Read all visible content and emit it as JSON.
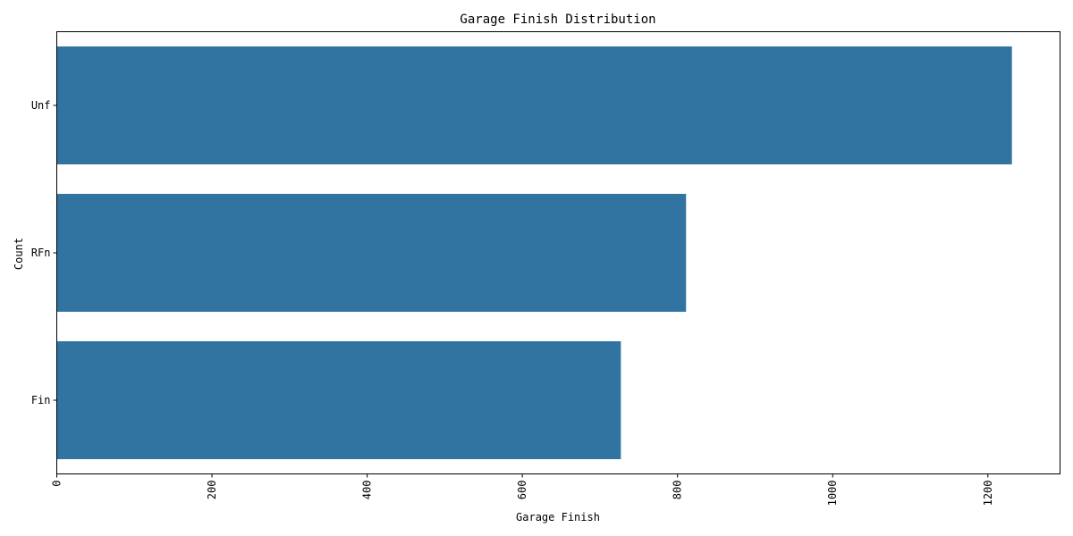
{
  "chart_data": {
    "type": "bar",
    "orientation": "horizontal",
    "title": "Garage Finish Distribution",
    "xlabel": "Garage Finish",
    "ylabel": "Count",
    "categories": [
      "Unf",
      "RFn",
      "Fin"
    ],
    "values": [
      1231,
      811,
      727
    ],
    "xlim": [
      0,
      1293
    ],
    "xticks": [
      0,
      200,
      400,
      600,
      800,
      1000,
      1200
    ],
    "xtick_rotation": 90,
    "bar_color": "#3274a1",
    "grid": false,
    "legend": "none"
  }
}
